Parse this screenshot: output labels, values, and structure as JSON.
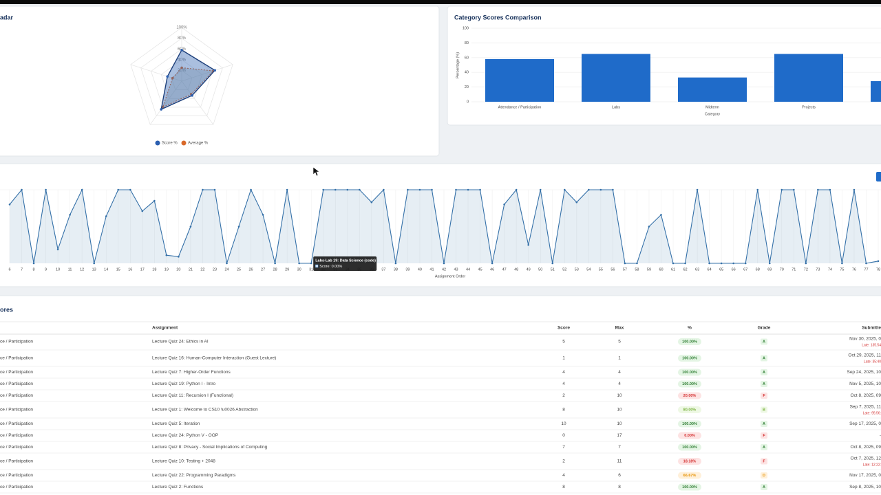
{
  "chart_data": [
    {
      "type": "radar",
      "title": "adar",
      "rlim": [
        0,
        100
      ],
      "rticks": [
        {
          "value": 20,
          "label": "20%"
        },
        {
          "value": 40,
          "label": "40%"
        },
        {
          "value": 60,
          "label": "60%"
        },
        {
          "value": 80,
          "label": "80%"
        },
        {
          "value": 100,
          "label": "100%"
        }
      ],
      "series": [
        {
          "name": "Score %",
          "color": "#2b5fb0",
          "values": [
            58,
            65,
            33,
            65,
            28
          ]
        },
        {
          "name": "Average %",
          "color": "#d9692a",
          "values": [
            25,
            62,
            30,
            60,
            18
          ]
        }
      ]
    },
    {
      "type": "bar",
      "title": "Category Scores Comparison",
      "y_label": "Percentage (%)",
      "x_label": "Category",
      "categories": [
        "Attendance / Participation",
        "Labs",
        "Midterm",
        "Projects",
        null
      ],
      "values": [
        58,
        65,
        33,
        65,
        28
      ],
      "color": "#1f6bc9",
      "ylim": [
        0,
        100
      ],
      "yticks": [
        0,
        20,
        40,
        60,
        80,
        100
      ],
      "grid": true
    },
    {
      "type": "line",
      "x_label": "Assignment Order",
      "color": "#3470a8",
      "x": [
        6,
        7,
        8,
        9,
        10,
        11,
        12,
        13,
        14,
        15,
        16,
        17,
        18,
        19,
        20,
        21,
        22,
        23,
        24,
        25,
        26,
        27,
        28,
        29,
        30,
        31,
        32,
        33,
        34,
        35,
        36,
        37,
        38,
        39,
        40,
        41,
        42,
        43,
        44,
        45,
        46,
        47,
        48,
        49,
        50,
        51,
        52,
        53,
        54,
        55,
        56,
        57,
        58,
        59,
        60,
        61,
        62,
        63,
        64,
        65,
        66,
        67,
        68,
        69,
        70,
        71,
        72,
        73,
        74,
        75,
        76,
        77,
        78
      ],
      "values": [
        80,
        100,
        0,
        100,
        19,
        66,
        100,
        0,
        64,
        100,
        100,
        71,
        85,
        11,
        9,
        50,
        100,
        100,
        0,
        50,
        100,
        66,
        0,
        100,
        0,
        0,
        100,
        100,
        100,
        100,
        83,
        100,
        0,
        100,
        100,
        100,
        0,
        100,
        100,
        100,
        0,
        80,
        100,
        25,
        100,
        0,
        100,
        83,
        100,
        100,
        100,
        0,
        0,
        50,
        66,
        0,
        0,
        100,
        0,
        0,
        0,
        0,
        100,
        0,
        100,
        100,
        0,
        100,
        100,
        0,
        100,
        0,
        3
      ],
      "xlim": [
        6,
        78
      ],
      "xticks": [
        6,
        7,
        8,
        9,
        10,
        11,
        12,
        13,
        14,
        15,
        16,
        17,
        18,
        19,
        20,
        21,
        22,
        23,
        24,
        25,
        26,
        27,
        28,
        29,
        30,
        31,
        32,
        33,
        34,
        35,
        36,
        37,
        38,
        39,
        40,
        41,
        42,
        43,
        44,
        45,
        46,
        47,
        48,
        49,
        50,
        51,
        52,
        53,
        54,
        55,
        56,
        57,
        58,
        59,
        60,
        61,
        62,
        63,
        64,
        65,
        66,
        67,
        68,
        69,
        70,
        71,
        72,
        73,
        74,
        75,
        76,
        77,
        78
      ],
      "ylim": [
        0,
        100
      ],
      "grid": true,
      "tooltip": {
        "index": 25,
        "title": "Labs-Lab 19: Data Science (code)",
        "text": "Score: 0.00%"
      }
    }
  ],
  "table": {
    "title": "ores",
    "columns": [
      "Assignment",
      "Score",
      "Max",
      "%",
      "Grade",
      "Submitte"
    ],
    "grade_styles": {
      "A": {
        "bg": "#e4f5e4",
        "fg": "#2e7d32"
      },
      "B": {
        "bg": "#eef8e4",
        "fg": "#7cb342"
      },
      "D": {
        "bg": "#fff0d9",
        "fg": "#e69100"
      },
      "F": {
        "bg": "#fde3e3",
        "fg": "#d32f2f"
      }
    },
    "rows": [
      {
        "category": "ce / Participation",
        "assignment": "Lecture Quiz 24: Ethics in AI",
        "score": 5,
        "max": 5,
        "percent": "100.00%",
        "grade": "A",
        "submitted": "Nov 30, 2025, 0",
        "late": "Late: 135.54"
      },
      {
        "category": "ce / Participation",
        "assignment": "Lecture Quiz 16: Human-Computer Interaction (Guest Lecture)",
        "score": 1,
        "max": 1,
        "percent": "100.00%",
        "grade": "A",
        "submitted": "Oct 29, 2025, 11",
        "late": "Late: 35:40"
      },
      {
        "category": "ce / Participation",
        "assignment": "Lecture Quiz 7: Higher-Order Functions",
        "score": 4,
        "max": 4,
        "percent": "100.00%",
        "grade": "A",
        "submitted": "Sep 24, 2025, 10"
      },
      {
        "category": "ce / Participation",
        "assignment": "Lecture Quiz 19: Python I - Intro",
        "score": 4,
        "max": 4,
        "percent": "100.00%",
        "grade": "A",
        "submitted": "Nov 5, 2025, 10"
      },
      {
        "category": "ce / Participation",
        "assignment": "Lecture Quiz 11: Recursion I (Functional)",
        "score": 2,
        "max": 10,
        "percent": "20.00%",
        "grade": "F",
        "submitted": "Oct 8, 2025, 09"
      },
      {
        "category": "ce / Participation",
        "assignment": "Lecture Quiz 1: Welcome to CS10 \\u0026 Abstraction",
        "score": 8,
        "max": 10,
        "percent": "80.00%",
        "grade": "B",
        "submitted": "Sep 7, 2025, 11",
        "late": "Late: 95:56:"
      },
      {
        "category": "ce / Participation",
        "assignment": "Lecture Quiz 5: Iteration",
        "score": 10,
        "max": 10,
        "percent": "100.00%",
        "grade": "A",
        "submitted": "Sep 17, 2025, 0"
      },
      {
        "category": "ce / Participation",
        "assignment": "Lecture Quiz 24: Python V - OOP",
        "score": 0,
        "max": 17,
        "percent": "0.00%",
        "grade": "F",
        "submitted": "-"
      },
      {
        "category": "ce / Participation",
        "assignment": "Lecture Quiz 8: Privacy - Social Implications of Computing",
        "score": 7,
        "max": 7,
        "percent": "100.00%",
        "grade": "A",
        "submitted": "Oct 8, 2025, 09"
      },
      {
        "category": "ce / Participation",
        "assignment": "Lecture Quiz 10: Testing + 2048",
        "score": 2,
        "max": 11,
        "percent": "18.18%",
        "grade": "F",
        "submitted": "Oct 7, 2025, 12",
        "late": "Late: 12:22:"
      },
      {
        "category": "ce / Participation",
        "assignment": "Lecture Quiz 22: Programming Paradigms",
        "score": 4,
        "max": 6,
        "percent": "66.67%",
        "grade": "D",
        "submitted": "Nov 17, 2025, 0"
      },
      {
        "category": "ce / Participation",
        "assignment": "Lecture Quiz 2: Functions",
        "score": 8,
        "max": 8,
        "percent": "100.00%",
        "grade": "A",
        "submitted": "Sep 8, 2025, 10"
      }
    ]
  }
}
